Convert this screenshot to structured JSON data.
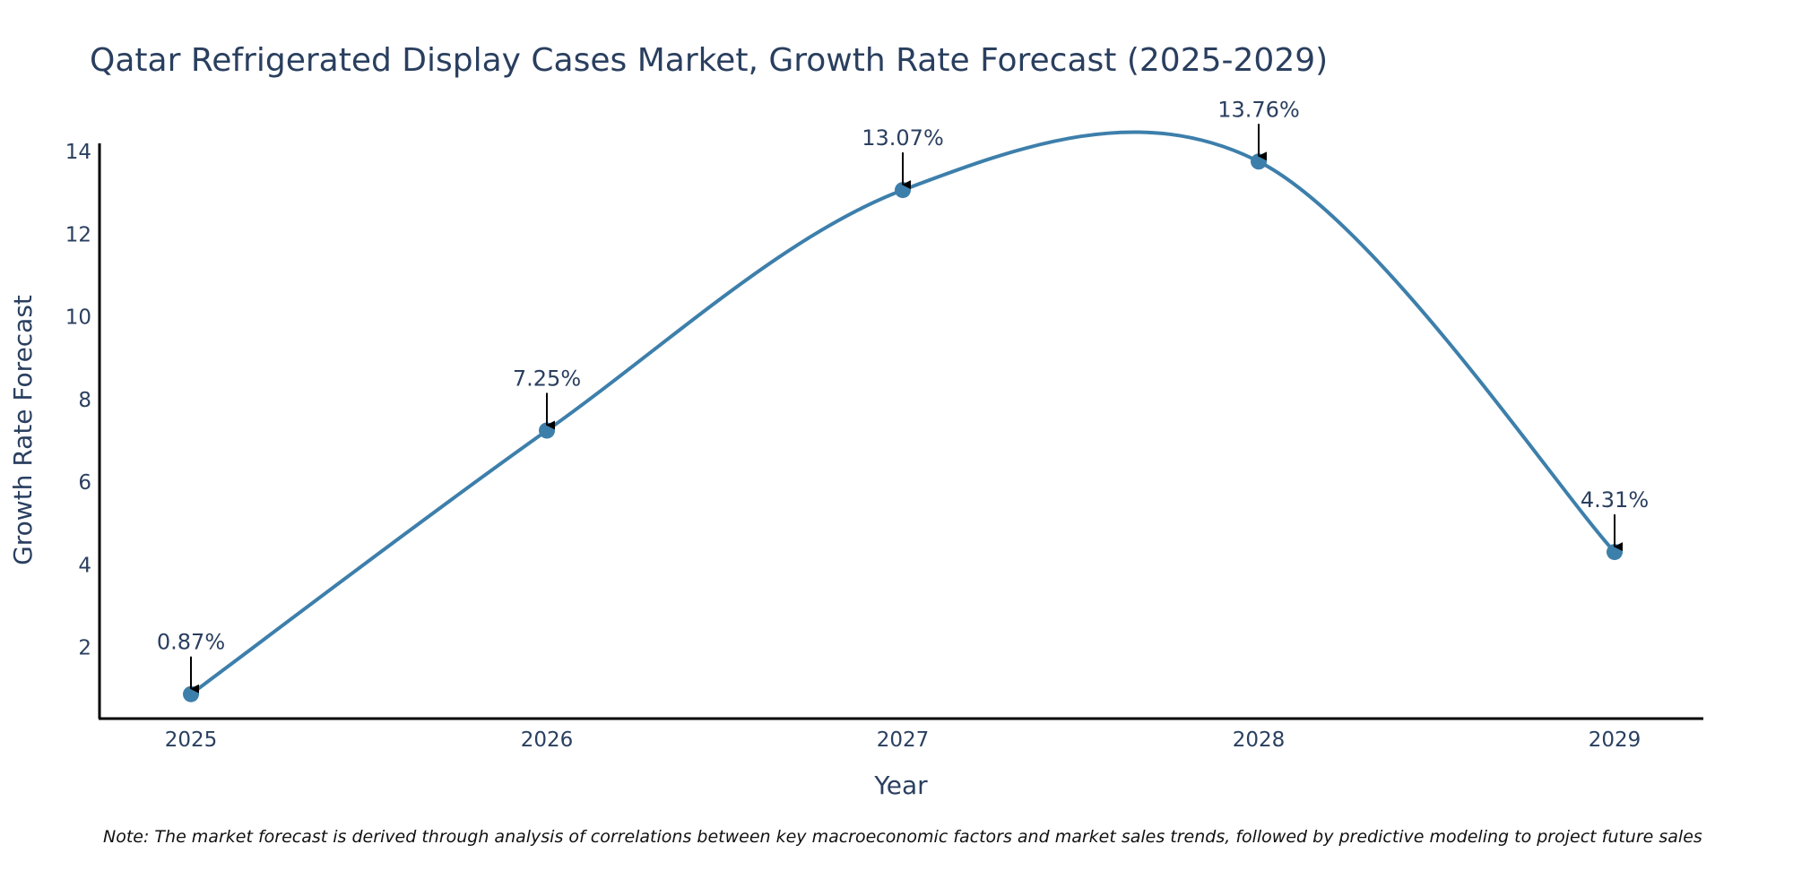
{
  "chart_data": {
    "type": "line",
    "title": "Qatar Refrigerated Display Cases Market, Growth Rate Forecast (2025-2029)",
    "xlabel": "Year",
    "ylabel": "Growth Rate Forecast",
    "categories": [
      "2025",
      "2026",
      "2027",
      "2028",
      "2029"
    ],
    "series": [
      {
        "name": "Growth Rate Forecast",
        "values": [
          0.87,
          7.25,
          13.07,
          13.76,
          4.31
        ],
        "labels": [
          "0.87%",
          "7.25%",
          "13.07%",
          "13.76%",
          "4.31%"
        ]
      }
    ],
    "ylim": [
      0.3,
      14.2
    ],
    "yticks": [
      2,
      4,
      6,
      8,
      10,
      12,
      14
    ],
    "grid": false,
    "line_shape": "spline",
    "line_color": "#3d7fab",
    "marker_color": "#3d7fab",
    "arrow_color": "#000000",
    "note": "Note: The market forecast is derived through analysis of correlations between key macroeconomic factors and market sales trends, followed by predictive modeling to project future sales"
  }
}
